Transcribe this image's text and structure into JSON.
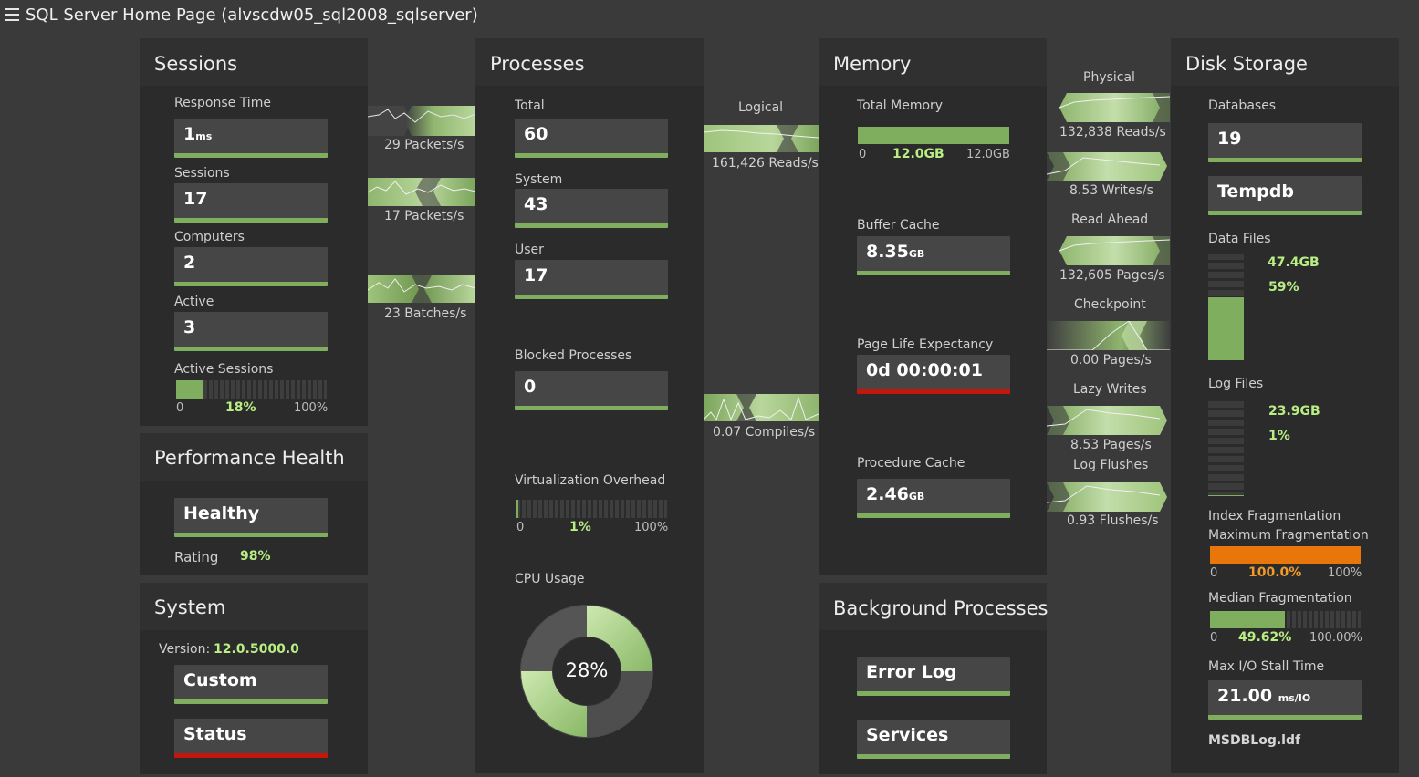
{
  "app": {
    "title": "SQL Server Home Page (alvscdw05_sql2008_sqlserver)"
  },
  "colors": {
    "accent_green": "#7fae5e",
    "alert_red": "#c4160c",
    "orange": "#e8760a",
    "value_green": "#b8ee84"
  },
  "sessions": {
    "title": "Sessions",
    "response_time": {
      "label": "Response Time",
      "value": "1",
      "unit": "ms"
    },
    "sessions": {
      "label": "Sessions",
      "value": "17"
    },
    "computers": {
      "label": "Computers",
      "value": "2"
    },
    "active": {
      "label": "Active",
      "value": "3"
    },
    "active_sessions": {
      "label": "Active Sessions",
      "min": "0",
      "pct": "18%",
      "max": "100%",
      "fraction": 0.18
    }
  },
  "performance": {
    "title": "Performance Health",
    "status": "Healthy",
    "rating_label": "Rating",
    "rating": "98%"
  },
  "system": {
    "title": "System",
    "version_label": "Version:",
    "version": "12.0.5000.0",
    "custom": "Custom",
    "status": "Status"
  },
  "flows_sessions": {
    "packets_in": "29 Packets/s",
    "packets_out": "17 Packets/s",
    "batches": "23 Batches/s"
  },
  "processes": {
    "title": "Processes",
    "total": {
      "label": "Total",
      "value": "60"
    },
    "system": {
      "label": "System",
      "value": "43"
    },
    "user": {
      "label": "User",
      "value": "17"
    },
    "blocked": {
      "label": "Blocked Processes",
      "value": "0"
    },
    "virtualization": {
      "label": "Virtualization Overhead",
      "min": "0",
      "pct": "1%",
      "max": "100%",
      "fraction": 0.01
    },
    "cpu": {
      "label": "CPU Usage",
      "value": "28%",
      "fraction": 0.28
    }
  },
  "flows_processes": {
    "logical_label": "Logical",
    "logical_reads": "161,426 Reads/s",
    "compiles": "0.07 Compiles/s"
  },
  "memory": {
    "title": "Memory",
    "total_label": "Total  Memory",
    "total_min": "0",
    "total_value": "12.0GB",
    "total_max": "12.0GB",
    "total_fraction": 1.0,
    "buffer_cache": {
      "label": "Buffer Cache",
      "value": "8.35",
      "unit": "GB"
    },
    "ple": {
      "label": "Page Life Expectancy",
      "value": "0d 00:00:01"
    },
    "proc_cache": {
      "label": "Procedure Cache",
      "value": "2.46",
      "unit": "GB"
    }
  },
  "background": {
    "title": "Background Processes",
    "error_log": "Error Log",
    "services": "Services"
  },
  "flows_memory": {
    "physical_label": "Physical",
    "physical_reads": "132,838 Reads/s",
    "physical_writes": "8.53 Writes/s",
    "read_ahead_label": "Read Ahead",
    "read_ahead": "132,605 Pages/s",
    "checkpoint_label": "Checkpoint",
    "checkpoint": "0.00 Pages/s",
    "lazy_label": "Lazy Writes",
    "lazy": "8.53 Pages/s",
    "log_label": "Log Flushes",
    "log": "0.93 Flushes/s"
  },
  "disk": {
    "title": "Disk Storage",
    "databases": {
      "label": "Databases",
      "value": "19"
    },
    "tempdb": "Tempdb",
    "data_files": {
      "label": "Data Files",
      "size": "47.4GB",
      "pct": "59%",
      "fraction": 0.59
    },
    "log_files": {
      "label": "Log Files",
      "size": "23.9GB",
      "pct": "1%",
      "fraction": 0.01
    },
    "index_frag": {
      "label": "Index Fragmentation"
    },
    "max_frag": {
      "label": "Maximum Fragmentation",
      "min": "0",
      "pct": "100.0%",
      "max": "100%",
      "fraction": 1.0
    },
    "median_frag": {
      "label": "Median Fragmentation",
      "min": "0",
      "pct": "49.62%",
      "max": "100.00%",
      "fraction": 0.4962
    },
    "max_io": {
      "label": "Max I/O Stall Time",
      "value": "21.00",
      "unit": "ms/IO"
    },
    "msdb": "MSDBLog.ldf"
  }
}
